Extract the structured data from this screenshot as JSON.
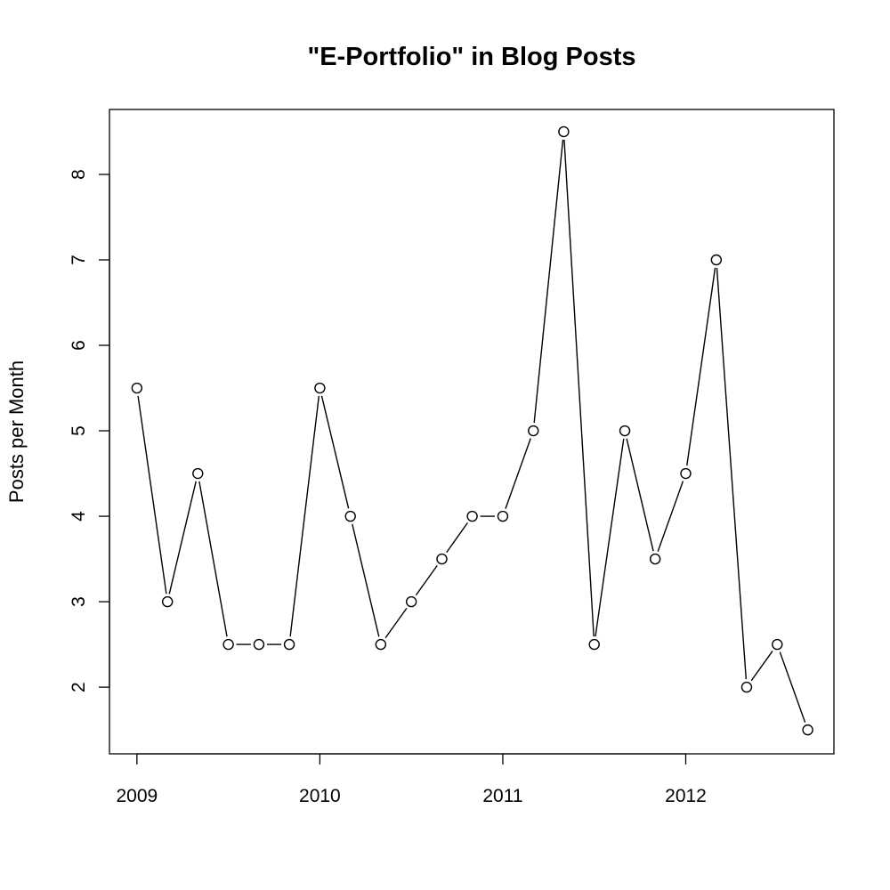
{
  "chart_data": {
    "type": "line",
    "title": "\"E-Portfolio\" in Blog Posts",
    "xlabel": "",
    "ylabel": "Posts per Month",
    "x_tick_labels": [
      "2009",
      "2010",
      "2011",
      "2012"
    ],
    "x_tick_values": [
      2009,
      2010,
      2011,
      2012
    ],
    "y_tick_labels": [
      "2",
      "3",
      "4",
      "5",
      "6",
      "7",
      "8"
    ],
    "y_tick_values": [
      2,
      3,
      4,
      5,
      6,
      7,
      8
    ],
    "xlim": [
      2008.85,
      2012.81
    ],
    "ylim": [
      1.22,
      8.76
    ],
    "grid": false,
    "markers": "open-circle",
    "line_color": "#000000",
    "series": [
      {
        "x": [
          2009.0,
          2009.167,
          2009.333,
          2009.5,
          2009.667,
          2009.833,
          2010.0,
          2010.167,
          2010.333,
          2010.5,
          2010.667,
          2010.833,
          2011.0,
          2011.167,
          2011.333,
          2011.5,
          2011.667,
          2011.833,
          2012.0,
          2012.167,
          2012.333,
          2012.5,
          2012.667
        ],
        "values": [
          5.5,
          3,
          4.5,
          2.5,
          2.5,
          2.5,
          5.5,
          4,
          2.5,
          3,
          3.5,
          4,
          4,
          5,
          8.5,
          2.5,
          5,
          3.5,
          4.5,
          7,
          2,
          2.5,
          1.5
        ]
      }
    ]
  }
}
